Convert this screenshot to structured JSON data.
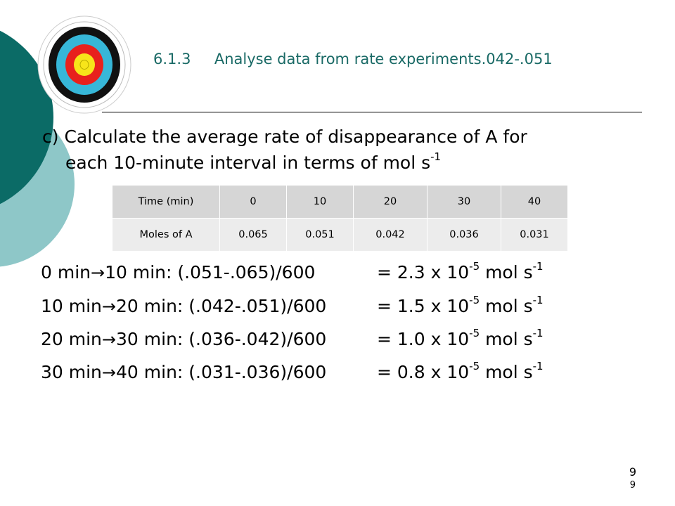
{
  "slide": {
    "title_num": "6.1.3",
    "title_text": "Analyse data from rate experiments.042-.051",
    "question": {
      "line1": "c) Calculate the average rate of disappearance of A for",
      "line2": "each 10-minute interval in terms of mol s",
      "line2_sup": "-1"
    },
    "table": {
      "row1": [
        "Time (min)",
        "0",
        "10",
        "20",
        "30",
        "40"
      ],
      "row2": [
        "Moles of  A",
        "0.065",
        "0.051",
        "0.042",
        "0.036",
        "0.031"
      ]
    },
    "calculations": [
      {
        "from": " 0 min",
        "to": "10 min: (.051-.065)/600",
        "result": "= 2.3 x 10",
        "exp": "-5",
        "unit": " mol s",
        "unit_exp": "-1"
      },
      {
        "from": "10 min",
        "to": "20 min: (.042-.051)/600",
        "result": "= 1.5 x 10",
        "exp": "-5",
        "unit": " mol s",
        "unit_exp": "-1"
      },
      {
        "from": "20 min",
        "to": "30 min: (.036-.042)/600",
        "result": "= 1.0 x 10",
        "exp": "-5",
        "unit": " mol s",
        "unit_exp": "-1"
      },
      {
        "from": "30 min",
        "to": "40 min: (.031-.036)/600",
        "result": "= 0.8 x 10",
        "exp": "-5",
        "unit": " mol s",
        "unit_exp": "-1"
      }
    ],
    "arrow": "→",
    "page_number_1": "9",
    "page_number_2": "9"
  },
  "colors": {
    "teal_dark": "#0b6b66",
    "teal_light": "#8ec7c8",
    "title": "#1a6a66",
    "table_header": "#d6d6d6",
    "table_row": "#ececec"
  },
  "icons": {
    "target": "archery-target-icon"
  }
}
